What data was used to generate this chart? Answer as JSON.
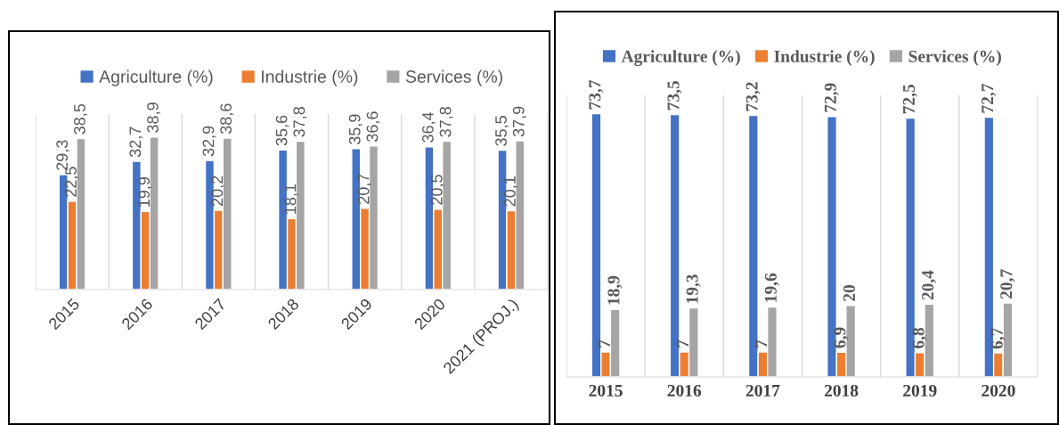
{
  "chart_data": [
    {
      "type": "bar",
      "categories": [
        "2015",
        "2016",
        "2017",
        "2018",
        "2019",
        "2020",
        "2021 (PROJ.)"
      ],
      "series": [
        {
          "name": "Agriculture (%)",
          "color": "#4472c4",
          "values": [
            29.3,
            32.7,
            32.9,
            35.6,
            35.9,
            36.4,
            35.5
          ],
          "value_labels": [
            "29,3",
            "32,7",
            "32,9",
            "35,6",
            "35,9",
            "36,4",
            "35,5"
          ]
        },
        {
          "name": "Industrie (%)",
          "color": "#ed7d31",
          "values": [
            22.5,
            19.9,
            20.2,
            18.1,
            20.7,
            20.5,
            20.1
          ],
          "value_labels": [
            "22,5",
            "19,9",
            "20,2",
            "18,1",
            "20,7",
            "20,5",
            "20,1"
          ]
        },
        {
          "name": "Services (%)",
          "color": "#a5a5a5",
          "values": [
            38.5,
            38.9,
            38.6,
            37.8,
            36.6,
            37.8,
            37.9
          ],
          "value_labels": [
            "38,5",
            "38,9",
            "38,6",
            "37,8",
            "36,6",
            "37,8",
            "37,9"
          ]
        }
      ],
      "legend": "top",
      "grid": "x",
      "tick_labels": "x"
    },
    {
      "type": "bar",
      "categories": [
        "2015",
        "2016",
        "2017",
        "2018",
        "2019",
        "2020"
      ],
      "series": [
        {
          "name": "Agriculture (%)",
          "color": "#4472c4",
          "values": [
            73.7,
            73.5,
            73.2,
            72.9,
            72.5,
            72.7
          ],
          "value_labels": [
            "73,7",
            "73,5",
            "73,2",
            "72,9",
            "72,5",
            "72,7"
          ]
        },
        {
          "name": "Industrie (%)",
          "color": "#ed7d31",
          "values": [
            7,
            7,
            7,
            6.9,
            6.8,
            6.7
          ],
          "value_labels": [
            "7",
            "7",
            "7",
            "6,9",
            "6,8",
            "6,7"
          ]
        },
        {
          "name": "Services (%)",
          "color": "#a5a5a5",
          "values": [
            18.9,
            19.3,
            19.6,
            20,
            20.4,
            20.7
          ],
          "value_labels": [
            "18,9",
            "19,3",
            "19,6",
            "20",
            "20,4",
            "20,7"
          ]
        }
      ],
      "legend": "top",
      "grid": "x",
      "tick_labels": "x"
    }
  ]
}
